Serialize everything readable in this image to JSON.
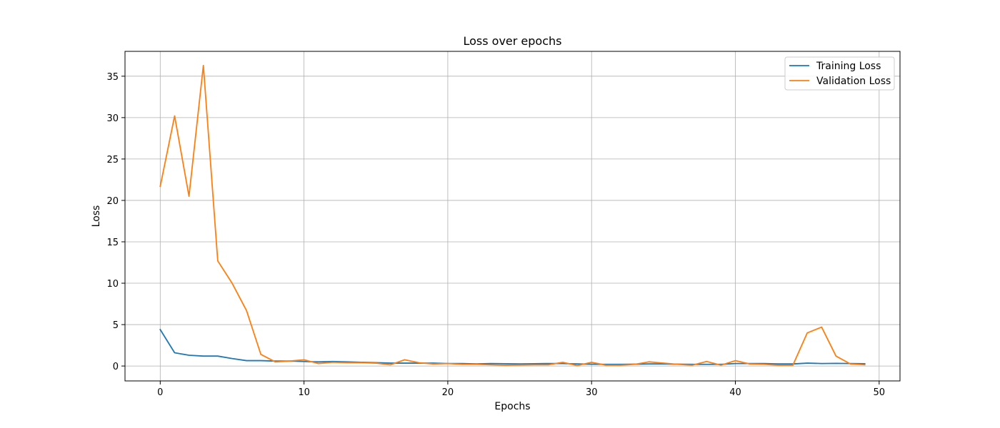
{
  "chart_data": {
    "type": "line",
    "title": "Loss over epochs",
    "xlabel": "Epochs",
    "ylabel": "Loss",
    "xlim": [
      -2.45,
      51.45
    ],
    "ylim": [
      -1.8,
      38.0
    ],
    "xticks": [
      0,
      10,
      20,
      30,
      40,
      50
    ],
    "yticks": [
      0,
      5,
      10,
      15,
      20,
      25,
      30,
      35
    ],
    "grid": true,
    "legend_position": "top-right",
    "x": [
      0,
      1,
      2,
      3,
      4,
      5,
      6,
      7,
      8,
      9,
      10,
      11,
      12,
      13,
      14,
      15,
      16,
      17,
      18,
      19,
      20,
      21,
      22,
      23,
      24,
      25,
      26,
      27,
      28,
      29,
      30,
      31,
      32,
      33,
      34,
      35,
      36,
      37,
      38,
      39,
      40,
      41,
      42,
      43,
      44,
      45,
      46,
      47,
      48,
      49
    ],
    "series": [
      {
        "name": "Training Loss",
        "color": "#1f77b4",
        "values": [
          4.4,
          1.6,
          1.3,
          1.2,
          1.2,
          0.9,
          0.65,
          0.65,
          0.6,
          0.6,
          0.55,
          0.5,
          0.55,
          0.5,
          0.45,
          0.4,
          0.35,
          0.35,
          0.35,
          0.35,
          0.3,
          0.3,
          0.25,
          0.3,
          0.28,
          0.25,
          0.28,
          0.3,
          0.3,
          0.25,
          0.22,
          0.2,
          0.2,
          0.22,
          0.25,
          0.25,
          0.22,
          0.2,
          0.2,
          0.2,
          0.3,
          0.3,
          0.3,
          0.25,
          0.25,
          0.35,
          0.3,
          0.32,
          0.3,
          0.28
        ]
      },
      {
        "name": "Validation Loss",
        "color": "#ff7f0e",
        "values": [
          21.7,
          30.2,
          20.5,
          36.3,
          12.7,
          10.0,
          6.7,
          1.4,
          0.5,
          0.6,
          0.75,
          0.3,
          0.45,
          0.4,
          0.4,
          0.35,
          0.15,
          0.75,
          0.4,
          0.25,
          0.3,
          0.2,
          0.2,
          0.15,
          0.1,
          0.12,
          0.15,
          0.15,
          0.45,
          0.05,
          0.45,
          0.1,
          0.1,
          0.2,
          0.5,
          0.35,
          0.2,
          0.1,
          0.55,
          0.1,
          0.65,
          0.25,
          0.2,
          0.1,
          0.1,
          4.0,
          4.7,
          1.2,
          0.25,
          0.15
        ]
      }
    ]
  }
}
